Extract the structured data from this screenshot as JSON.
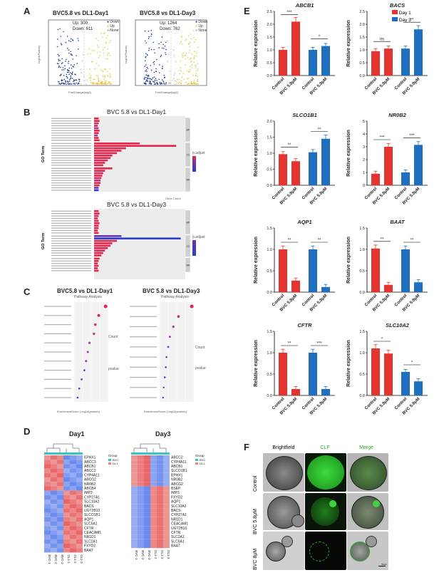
{
  "panels": {
    "A": "A",
    "B": "B",
    "C": "C",
    "D": "D",
    "E": "E",
    "F": "F"
  },
  "panelA": {
    "plot1": {
      "title": "BVC5.8 vs DL1-Day1",
      "up": "Up: 300",
      "down": "Down: 611",
      "legend": [
        "Down",
        "Up",
        "None"
      ],
      "xlabel": "FoldChange(log2)",
      "ylabel": "-log10(Pvalue)"
    },
    "plot2": {
      "title": "BVC5.8 vs DL1-Day3",
      "up": "Up: 1264",
      "down": "Down: 762",
      "legend": [
        "Down",
        "Up",
        "None"
      ],
      "xlabel": "FoldChange(log2)",
      "ylabel": "-log10(Pvalue)"
    }
  },
  "panelB": {
    "title1": "BVC 5.8 vs DL1-Day1",
    "title2": "BVC 5.8 vs DL1-Day3",
    "ylabel": "GO Term",
    "xlabel": "Gene Count",
    "legend": "p.adjust",
    "groups": [
      "BP",
      "CC",
      "MF"
    ]
  },
  "panelC": {
    "title1": "BVC5.8 vs DL1-Day1",
    "title2": "BVC 5.8 vs DL1-Day3",
    "subtitle": "Pathway Analysis",
    "xlabel": "EnrichmentScore (-log10(pvalue))",
    "count_label": "Count",
    "pvalue_label": "pvalue"
  },
  "panelD": {
    "title1": "Day1",
    "title2": "Day3",
    "genes1": [
      "EPHX1",
      "ABCC3",
      "ABCB1",
      "ABCC2",
      "CYP4A11",
      "ABCG2",
      "NR0B2",
      "ABCB4",
      "IMP3",
      "CYP27A1",
      "SLC10A2",
      "BACS",
      "UGT2B10",
      "SLCO1B1",
      "AQP1",
      "SLC5A1",
      "CFTR",
      "CEACAM1",
      "NR1D1",
      "SLC2A1",
      "FXYD2",
      "BAAT"
    ],
    "genes2": [
      "ABCC2",
      "CYP4A11",
      "ABCB1",
      "SLCO1B1",
      "EPHX1",
      "NR0B2",
      "ABCG2",
      "BSEP",
      "IMP3",
      "FXYD2",
      "AQP1",
      "SLC10A2",
      "BACS",
      "CYP27A1",
      "NR1D1",
      "CEACAM1",
      "UGT2B10",
      "CFTR",
      "SLC2A1",
      "SLC5A1",
      "BAAT"
    ],
    "samples": [
      "BVC-1",
      "BVC-2",
      "BVC-3",
      "DL1-1",
      "DL1-2",
      "DL1-3"
    ],
    "group_label": "Group",
    "group_names": [
      "BVC",
      "DL1"
    ]
  },
  "panelE": {
    "legend": [
      "Day 1",
      "Day 3"
    ],
    "colors": {
      "day1": "#e3342f",
      "day3": "#1f6fc1"
    },
    "ylabel": "Relative expression",
    "xcats": [
      "Control",
      "BVC 5.8μM",
      "Control",
      "BVC 5.8μM"
    ]
  },
  "chart_data": [
    {
      "type": "bar",
      "title": "ABCB1",
      "categories": [
        "Control",
        "BVC 5.8μM",
        "Control",
        "BVC 5.8μM"
      ],
      "series": [
        {
          "name": "Day 1",
          "values": [
            1.0,
            2.1,
            null,
            null
          ]
        },
        {
          "name": "Day 3",
          "values": [
            null,
            null,
            1.0,
            1.15
          ]
        }
      ],
      "ylabel": "Relative expression",
      "ylim": [
        0,
        2.5
      ],
      "yticks": [
        "0.0",
        "0.5",
        "1.0",
        "1.5",
        "2.0",
        "2.5"
      ],
      "sig": [
        "***",
        "*"
      ]
    },
    {
      "type": "bar",
      "title": "BACS",
      "categories": [
        "Control",
        "BVC 5.8μM",
        "Control",
        "BVC 5.8μM"
      ],
      "series": [
        {
          "name": "Day 1",
          "values": [
            0.95,
            1.05,
            null,
            null
          ]
        },
        {
          "name": "Day 3",
          "values": [
            null,
            null,
            1.05,
            1.8
          ]
        }
      ],
      "ylabel": "Relative expression",
      "ylim": [
        0,
        2.5
      ],
      "yticks": [
        "0.0",
        "0.5",
        "1.0",
        "1.5",
        "2.0",
        "2.5"
      ],
      "sig": [
        "ns",
        "**"
      ]
    },
    {
      "type": "bar",
      "title": "SLCO1B1",
      "categories": [
        "Control",
        "BVC 5.8μM",
        "Control",
        "BVC 5.8μM"
      ],
      "series": [
        {
          "name": "Day 1",
          "values": [
            0.97,
            0.75,
            null,
            null
          ]
        },
        {
          "name": "Day 3",
          "values": [
            null,
            null,
            1.03,
            1.45
          ]
        }
      ],
      "ylabel": "Relative expression",
      "ylim": [
        0,
        2.0
      ],
      "yticks": [
        "0.0",
        "0.5",
        "1.0",
        "1.5",
        "2.0"
      ],
      "sig": [
        "**",
        "**"
      ]
    },
    {
      "type": "bar",
      "title": "NR0B2",
      "categories": [
        "Control",
        "BVC 5.8μM",
        "Control",
        "BVC 5.8μM"
      ],
      "series": [
        {
          "name": "Day 1",
          "values": [
            0.9,
            3.0,
            null,
            null
          ]
        },
        {
          "name": "Day 3",
          "values": [
            null,
            null,
            1.0,
            3.15
          ]
        }
      ],
      "ylabel": "Relative expression",
      "ylim": [
        0,
        5
      ],
      "yticks": [
        "0",
        "1",
        "2",
        "3",
        "4",
        "5"
      ],
      "sig": [
        "***",
        "***"
      ]
    },
    {
      "type": "bar",
      "title": "AQP1",
      "categories": [
        "Control",
        "BVC 5.8μM",
        "Control",
        "BVC 5.8μM"
      ],
      "series": [
        {
          "name": "Day 1",
          "values": [
            1.0,
            0.27,
            null,
            null
          ]
        },
        {
          "name": "Day 3",
          "values": [
            null,
            null,
            1.0,
            0.12
          ]
        }
      ],
      "ylabel": "Relative expression",
      "ylim": [
        0,
        1.5
      ],
      "yticks": [
        "0.0",
        "0.5",
        "1.0",
        "1.5"
      ],
      "sig": [
        "**",
        "**"
      ]
    },
    {
      "type": "bar",
      "title": "BAAT",
      "categories": [
        "Control",
        "BVC 5.8μM",
        "Control",
        "BVC 5.8μM"
      ],
      "series": [
        {
          "name": "Day 1",
          "values": [
            1.02,
            0.17,
            null,
            null
          ]
        },
        {
          "name": "Day 3",
          "values": [
            null,
            null,
            1.0,
            0.23
          ]
        }
      ],
      "ylabel": "Relative expression",
      "ylim": [
        0,
        1.5
      ],
      "yticks": [
        "0.0",
        "0.5",
        "1.0",
        "1.5"
      ],
      "sig": [
        "**",
        "**"
      ]
    },
    {
      "type": "bar",
      "title": "CFTR",
      "categories": [
        "Control",
        "BVC 5.8μM",
        "Control",
        "BVC 5.8μM"
      ],
      "series": [
        {
          "name": "Day 1",
          "values": [
            1.0,
            0.15,
            null,
            null
          ]
        },
        {
          "name": "Day 3",
          "values": [
            null,
            null,
            1.0,
            0.15
          ]
        }
      ],
      "ylabel": "Relative expression",
      "ylim": [
        0,
        1.5
      ],
      "yticks": [
        "0.0",
        "0.5",
        "1.0",
        "1.5"
      ],
      "sig": [
        "**",
        "***"
      ]
    },
    {
      "type": "bar",
      "title": "SLC10A2",
      "categories": [
        "Control",
        "BVC 5.8μM",
        "Control",
        "BVC 5.8μM"
      ],
      "series": [
        {
          "name": "Day 1",
          "values": [
            1.1,
            0.98,
            null,
            null
          ]
        },
        {
          "name": "Day 3",
          "values": [
            null,
            null,
            0.55,
            0.33
          ]
        }
      ],
      "ylabel": "Relative expression",
      "ylim": [
        0,
        1.5
      ],
      "yticks": [
        "0.0",
        "0.5",
        "1.0",
        "1.5"
      ],
      "sig": [
        "*",
        "*"
      ]
    }
  ],
  "panelF": {
    "headers": [
      "Brightfield",
      "CLF",
      "Merge"
    ],
    "rows": [
      "Control",
      "BVC 5.8μM",
      "BVC 8μM"
    ],
    "scale": "50μm"
  }
}
